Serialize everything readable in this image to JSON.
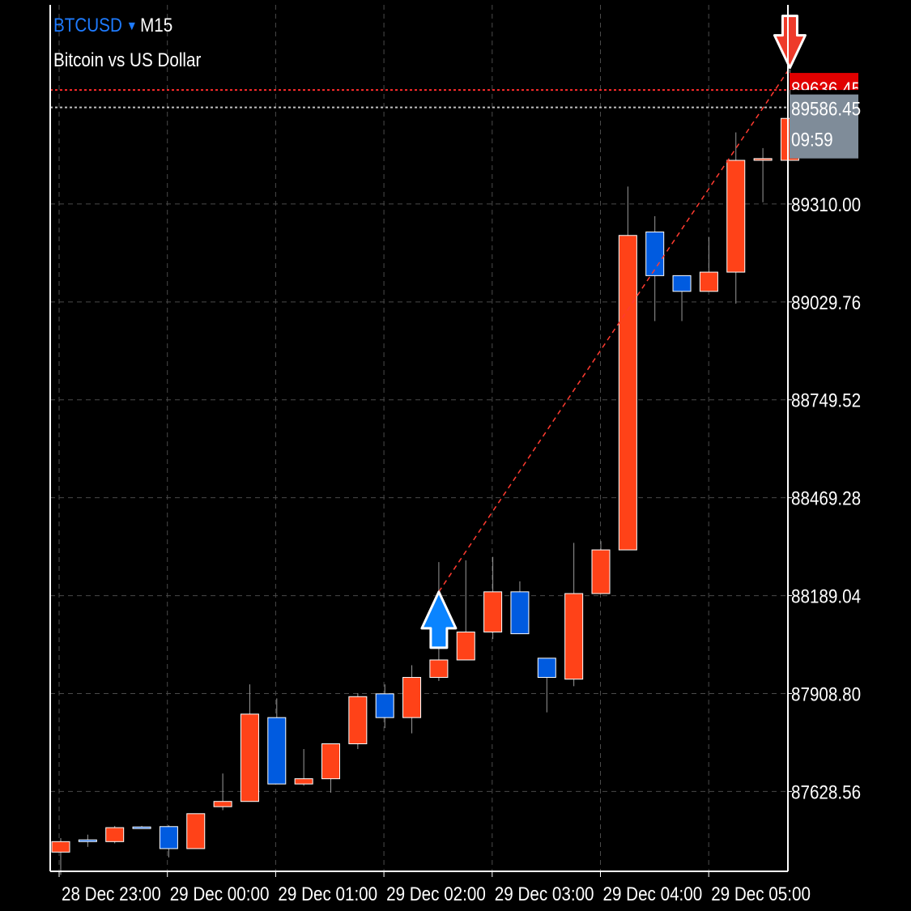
{
  "header": {
    "symbol": "BTCUSD",
    "symbol_dropdown_icon": "triangle-down-icon",
    "timeframe": "M15",
    "description": "Bitcoin vs US Dollar"
  },
  "colors": {
    "background": "#000000",
    "bull": "#ff4218",
    "bear": "#005be0",
    "ask_line": "#ff2b2b",
    "bid_line": "#c0c0c0",
    "grid": "#4a4a4a",
    "trend_line": "#ff3b30",
    "bid_label_bg": "#7f8c99",
    "ask_label_bg": "#e00000"
  },
  "price_tags": {
    "ask": "89636.45",
    "bid": "89586.45",
    "countdown": "09:59"
  },
  "chart_data": {
    "type": "candlestick",
    "title": "",
    "xlabel": "",
    "ylabel": "",
    "timeframe": "M15",
    "y_ticks": [
      "89310.00",
      "89029.76",
      "88749.52",
      "88469.28",
      "88189.04",
      "87908.80",
      "87628.56"
    ],
    "x_ticks": [
      "28 Dec 23:00",
      "29 Dec 00:00",
      "29 Dec 01:00",
      "29 Dec 02:00",
      "29 Dec 03:00",
      "29 Dec 04:00",
      "29 Dec 05:00"
    ],
    "ylim": [
      87400,
      89880
    ],
    "grid": true,
    "candles": [
      {
        "o": 87455,
        "h": 87495,
        "l": 87390,
        "c": 87485
      },
      {
        "o": 87490,
        "h": 87505,
        "l": 87470,
        "c": 87485
      },
      {
        "o": 87485,
        "h": 87530,
        "l": 87480,
        "c": 87525
      },
      {
        "o": 87527,
        "h": 87530,
        "l": 87524,
        "c": 87526
      },
      {
        "o": 87528,
        "h": 87532,
        "l": 87440,
        "c": 87465
      },
      {
        "o": 87465,
        "h": 87565,
        "l": 87465,
        "c": 87565
      },
      {
        "o": 87585,
        "h": 87680,
        "l": 87575,
        "c": 87600
      },
      {
        "o": 87600,
        "h": 87935,
        "l": 87600,
        "c": 87850
      },
      {
        "o": 87840,
        "h": 87895,
        "l": 87650,
        "c": 87650
      },
      {
        "o": 87650,
        "h": 87750,
        "l": 87645,
        "c": 87665
      },
      {
        "o": 87665,
        "h": 87760,
        "l": 87625,
        "c": 87765
      },
      {
        "o": 87765,
        "h": 87910,
        "l": 87750,
        "c": 87900
      },
      {
        "o": 87908,
        "h": 87935,
        "l": 87810,
        "c": 87840
      },
      {
        "o": 87840,
        "h": 87990,
        "l": 87795,
        "c": 87955
      },
      {
        "o": 87955,
        "h": 88285,
        "l": 87945,
        "c": 88005
      },
      {
        "o": 88005,
        "h": 88290,
        "l": 88005,
        "c": 88085
      },
      {
        "o": 88085,
        "h": 88300,
        "l": 88065,
        "c": 88200
      },
      {
        "o": 88200,
        "h": 88230,
        "l": 88080,
        "c": 88080
      },
      {
        "o": 88010,
        "h": 88010,
        "l": 87855,
        "c": 87955
      },
      {
        "o": 87950,
        "h": 88340,
        "l": 87930,
        "c": 88195
      },
      {
        "o": 88195,
        "h": 88345,
        "l": 88195,
        "c": 88320
      },
      {
        "o": 88320,
        "h": 89360,
        "l": 88320,
        "c": 89220
      },
      {
        "o": 89230,
        "h": 89275,
        "l": 88975,
        "c": 89105
      },
      {
        "o": 89105,
        "h": 89105,
        "l": 88975,
        "c": 89060
      },
      {
        "o": 89060,
        "h": 89215,
        "l": 89065,
        "c": 89115
      },
      {
        "o": 89115,
        "h": 89515,
        "l": 89025,
        "c": 89435
      },
      {
        "o": 89435,
        "h": 89470,
        "l": 89315,
        "c": 89440
      },
      {
        "o": 89435,
        "h": 89695,
        "l": 89435,
        "c": 89555
      }
    ],
    "buy_arrow": {
      "candle_index": 14,
      "price": 88200
    },
    "sell_arrow": {
      "candle_index": 27,
      "price": 89700
    },
    "trend_line": {
      "from": {
        "candle_index": 14,
        "price": 88200
      },
      "to": {
        "candle_index": 27,
        "price": 89700
      }
    }
  }
}
